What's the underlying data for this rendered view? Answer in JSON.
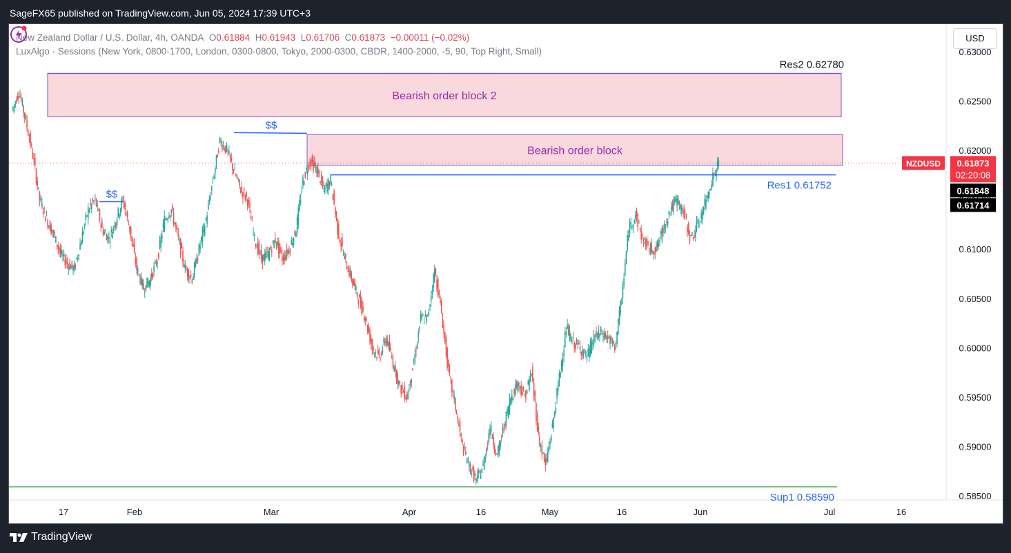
{
  "header": {
    "publisher_line": "SageFX65 published on TradingView.com, Jun 05, 2024 17:39 UTC+3"
  },
  "legend": {
    "symbol_desc": "New Zealand Dollar / U.S. Dollar, 4h, OANDA",
    "o_label": "O",
    "o_value": "0.61884",
    "h_label": "H",
    "h_value": "0.61943",
    "l_label": "L",
    "l_value": "0.61706",
    "c_label": "C",
    "c_value": "0.61873",
    "change": "−0.00011 (−0.02%)",
    "indicator": "LuxAlgo - Sessions (New York, 0800-1700, London, 0300-0800, Tokyo, 2000-0300, CBDR, 1400-2000, -5, 90, Top Right, Small)"
  },
  "currency_button": "USD",
  "footer": {
    "brand": "TradingView"
  },
  "colors": {
    "up": "#26a69a",
    "down": "#ef5350",
    "zone_fill": "#f9d9de",
    "zone_border": "#7e57c2",
    "zone_text": "#9c27b0",
    "level_blue": "#2962ff",
    "support_green": "#4caf50",
    "price_red": "#f23645",
    "ohlc_red": "#e04454"
  },
  "chart_data": {
    "type": "candlestick",
    "symbol": "NZDUSD",
    "timeframe": "4h",
    "ylim": [
      0.5822,
      0.6328
    ],
    "y_ticks": [
      "0.63000",
      "0.62500",
      "0.62000",
      "0.61500",
      "0.61000",
      "0.60500",
      "0.60000",
      "0.59500",
      "0.59000",
      "0.58500"
    ],
    "x_ticks": [
      "17",
      "Feb",
      "Mar",
      "Apr",
      "16",
      "May",
      "16",
      "Jun",
      "Jul",
      "16"
    ],
    "last_price": "0.61873",
    "countdown": "02:20:08",
    "price_labels": [
      "0.61848",
      "0.61714"
    ],
    "closes_approx": [
      0.624,
      0.626,
      0.623,
      0.6195,
      0.615,
      0.613,
      0.6115,
      0.6095,
      0.6085,
      0.608,
      0.611,
      0.614,
      0.615,
      0.612,
      0.611,
      0.613,
      0.615,
      0.612,
      0.608,
      0.606,
      0.607,
      0.609,
      0.613,
      0.614,
      0.611,
      0.608,
      0.607,
      0.61,
      0.613,
      0.617,
      0.621,
      0.62,
      0.618,
      0.616,
      0.615,
      0.611,
      0.609,
      0.6095,
      0.611,
      0.609,
      0.61,
      0.612,
      0.617,
      0.619,
      0.618,
      0.616,
      0.617,
      0.612,
      0.609,
      0.607,
      0.605,
      0.603,
      0.6,
      0.599,
      0.601,
      0.5985,
      0.596,
      0.595,
      0.5985,
      0.603,
      0.603,
      0.608,
      0.6035,
      0.5975,
      0.594,
      0.59,
      0.588,
      0.5865,
      0.588,
      0.592,
      0.589,
      0.592,
      0.595,
      0.5965,
      0.595,
      0.5975,
      0.591,
      0.588,
      0.592,
      0.597,
      0.602,
      0.6005,
      0.6,
      0.599,
      0.601,
      0.6015,
      0.601,
      0.6,
      0.605,
      0.612,
      0.6135,
      0.611,
      0.61,
      0.61,
      0.612,
      0.614,
      0.615,
      0.6135,
      0.611,
      0.6125,
      0.6145,
      0.617,
      0.6187
    ],
    "levels": [
      {
        "name": "Res2",
        "price": 0.6278,
        "label": "Res2 0.62780"
      },
      {
        "name": "Res1",
        "price": 0.61752,
        "label": "Res1 0.61752"
      },
      {
        "name": "Sup1",
        "price": 0.5859,
        "label": "Sup1 0.58590"
      }
    ],
    "zones": [
      {
        "label": "Bearish order block 2",
        "top": 0.6278,
        "bottom": 0.6234
      },
      {
        "label": "Bearish order block",
        "top": 0.6216,
        "bottom": 0.6185
      }
    ],
    "liquidity_marks": [
      {
        "label": "$$",
        "price": 0.6148
      },
      {
        "label": "$$",
        "price": 0.6218
      }
    ]
  }
}
